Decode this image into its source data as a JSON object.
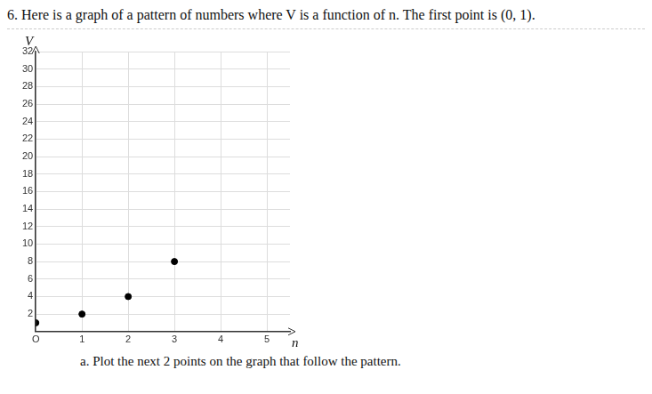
{
  "chart_data": {
    "type": "scatter",
    "title": "6. Here is a graph of a pattern of numbers where V is a function of n. The first point is (0, 1).",
    "annotations": [
      "a. Plot the next 2 points on the graph that follow the pattern."
    ],
    "xlabel": "n",
    "ylabel": "V",
    "x": [
      0,
      1,
      2,
      3
    ],
    "values": [
      1,
      2,
      4,
      8
    ],
    "color": "#000000",
    "marker": "circle",
    "xlim": [
      0,
      5.5
    ],
    "xticks": [
      {
        "value": 0,
        "label": "O"
      },
      1,
      2,
      3,
      4,
      5
    ],
    "ylim": [
      0,
      32
    ],
    "yticks": [
      2,
      4,
      6,
      8,
      10,
      12,
      14,
      16,
      18,
      20,
      22,
      24,
      26,
      28,
      30,
      32
    ],
    "grid": true
  }
}
